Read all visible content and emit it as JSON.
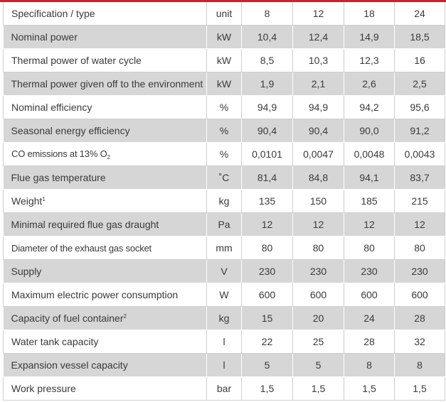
{
  "header": {
    "spec": "Specification / type",
    "unit": "unit",
    "cols": [
      "8",
      "12",
      "18",
      "24"
    ]
  },
  "rows": [
    {
      "spec": "Nominal power",
      "unit": "kW",
      "values": [
        "10,4",
        "12,4",
        "14,9",
        "18,5"
      ]
    },
    {
      "spec": "Thermal power of water cycle",
      "unit": "kW",
      "values": [
        "8,5",
        "10,3",
        "12,3",
        "16"
      ]
    },
    {
      "spec": "Thermal power given off to the environment",
      "unit": "kW",
      "values": [
        "1,9",
        "2,1",
        "2,6",
        "2,5"
      ]
    },
    {
      "spec": "Nominal efficiency",
      "unit": "%",
      "values": [
        "94,9",
        "94,9",
        "94,2",
        "95,6"
      ]
    },
    {
      "spec": "Seasonal energy efficiency",
      "unit": "%",
      "values": [
        "90,4",
        "90,4",
        "90,0",
        "91,2"
      ]
    },
    {
      "spec": "CO emissions at 13% O",
      "spec_sub": "2",
      "unit": "%",
      "values": [
        "0,0101",
        "0,0047",
        "0,0048",
        "0,0043"
      ]
    },
    {
      "spec": "Flue gas temperature",
      "unit": "˚C",
      "values": [
        "81,4",
        "84,8",
        "94,1",
        "83,7"
      ]
    },
    {
      "spec": "Weight",
      "spec_sup": "1",
      "unit": "kg",
      "values": [
        "135",
        "150",
        "185",
        "215"
      ]
    },
    {
      "spec": "Minimal required flue gas draught",
      "unit": "Pa",
      "values": [
        "12",
        "12",
        "12",
        "12"
      ]
    },
    {
      "spec": "Diameter of the exhaust gas socket",
      "unit": "mm",
      "values": [
        "80",
        "80",
        "80",
        "80"
      ]
    },
    {
      "spec": "Supply",
      "unit": "V",
      "values": [
        "230",
        "230",
        "230",
        "230"
      ]
    },
    {
      "spec": "Maximum electric power consumption",
      "unit": "W",
      "values": [
        "600",
        "600",
        "600",
        "600"
      ]
    },
    {
      "spec": "Capacity of fuel container",
      "spec_sup": "2",
      "unit": "kg",
      "values": [
        "15",
        "20",
        "24",
        "28"
      ]
    },
    {
      "spec": "Water tank capacity",
      "unit": "l",
      "values": [
        "22",
        "25",
        "28",
        "32"
      ]
    },
    {
      "spec": "Expansion vessel capacity",
      "unit": "l",
      "values": [
        "5",
        "5",
        "8",
        "8"
      ]
    },
    {
      "spec": "Work pressure",
      "unit": "bar",
      "values": [
        "1,5",
        "1,5",
        "1,5",
        "1,5"
      ]
    }
  ],
  "colors": {
    "accent": "#c1272d",
    "stripe": "#d6d6d6",
    "border": "#cfcfcf",
    "text": "#3a3a3a"
  }
}
